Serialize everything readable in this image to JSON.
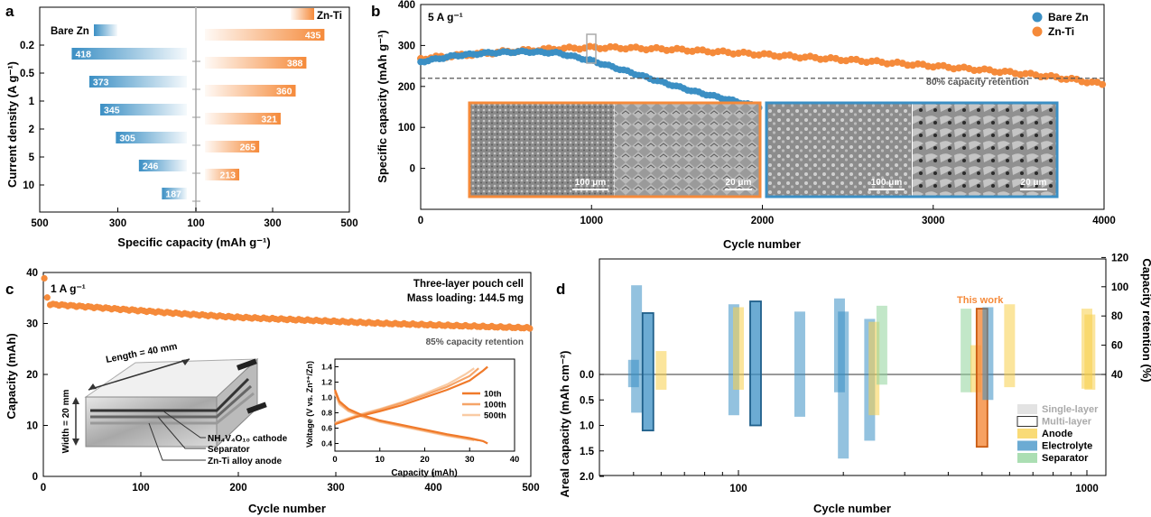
{
  "colors": {
    "blue": "#3b8fc4",
    "orange": "#f58a3a",
    "yellow": "#f7cf4a",
    "green": "#8fd39a",
    "gray": "#666666"
  },
  "panel_labels": [
    "a",
    "b",
    "c",
    "d"
  ],
  "chart_data": [
    {
      "panel": "a",
      "type": "bar",
      "xlabel": "Specific capacity (mAh g⁻¹)",
      "ylabel": "Current density (A g⁻¹)",
      "categories": [
        "0.2",
        "0.5",
        "1",
        "2",
        "5",
        "10"
      ],
      "x_ticks_left": [
        "500",
        "300",
        "100"
      ],
      "x_ticks_right": [
        "300",
        "500"
      ],
      "series": [
        {
          "name": "Bare Zn",
          "values": [
            418,
            373,
            345,
            305,
            246,
            187
          ],
          "labels": [
            "418",
            "373",
            "345",
            "305",
            "246",
            "187"
          ]
        },
        {
          "name": "Zn-Ti",
          "values": [
            435,
            388,
            360,
            321,
            265,
            213
          ],
          "labels": [
            "435",
            "388",
            "360",
            "321",
            "265",
            "213"
          ]
        }
      ]
    },
    {
      "panel": "b",
      "type": "scatter",
      "annotation": "5 A g⁻¹",
      "xlabel": "Cycle number",
      "ylabel": "Specific capacity (mAh g⁻¹)",
      "xlim": [
        0,
        4000
      ],
      "ylim": [
        -100,
        400
      ],
      "x_ticks": [
        "0",
        "1000",
        "2000",
        "3000",
        "4000"
      ],
      "y_ticks": [
        "400",
        "300",
        "200",
        "100",
        "0"
      ],
      "retention_line": 220,
      "retention_label": "80%  capacity retention",
      "scale_labels": [
        "100 μm",
        "20 μm",
        "100 μm",
        "20 μm"
      ],
      "series": [
        {
          "name": "Bare Zn",
          "x": [
            0,
            200,
            400,
            600,
            800,
            1000,
            1200,
            1400,
            1600,
            1800,
            1980
          ],
          "y": [
            260,
            275,
            282,
            285,
            282,
            263,
            238,
            212,
            188,
            168,
            150
          ]
        },
        {
          "name": "Zn-Ti",
          "x": [
            0,
            200,
            500,
            800,
            1000,
            1200,
            1500,
            1800,
            2000,
            2300,
            2600,
            3000,
            3300,
            3600,
            3800,
            4000
          ],
          "y": [
            268,
            275,
            285,
            292,
            295,
            294,
            290,
            283,
            278,
            270,
            262,
            250,
            240,
            228,
            218,
            205
          ]
        }
      ]
    },
    {
      "panel": "c",
      "type": "scatter",
      "annotation": "1 A g⁻¹",
      "title_lines": [
        "Three-layer pouch cell",
        "Mass loading: 144.5 mg"
      ],
      "xlabel": "Cycle number",
      "ylabel": "Capacity (mAh)",
      "xlim": [
        0,
        500
      ],
      "ylim": [
        0,
        40
      ],
      "x_ticks": [
        "0",
        "100",
        "200",
        "300",
        "400",
        "500"
      ],
      "y_ticks": [
        "0",
        "10",
        "20",
        "30",
        "40"
      ],
      "retention_label": "85% capacity retention",
      "series": [
        {
          "x": [
            0,
            5,
            50,
            100,
            150,
            200,
            250,
            300,
            350,
            400,
            450,
            500
          ],
          "y": [
            40,
            33.8,
            33.2,
            32.5,
            31.8,
            31.2,
            30.8,
            30.4,
            30.0,
            29.7,
            29.4,
            29.1
          ]
        }
      ],
      "schematic_labels": {
        "length": "Length = 40 mm",
        "width": "Width = 20 mm",
        "cathode": "NH₄V₄O₁₀ cathode",
        "separator": "Separator",
        "anode": "Zn-Ti alloy anode"
      },
      "inset": {
        "type": "line",
        "xlabel": "Capacity (mAh)",
        "ylabel": "Voltage (V vs. Zn²⁺/Zn)",
        "xlim": [
          0,
          40
        ],
        "ylim": [
          0.3,
          1.5
        ],
        "x_ticks": [
          "0",
          "10",
          "20",
          "30",
          "40"
        ],
        "y_ticks": [
          "0.4",
          "0.6",
          "0.8",
          "1.0",
          "1.2",
          "1.4"
        ],
        "series": [
          {
            "name": "10th",
            "charge": {
              "x": [
                0,
                5,
                10,
                15,
                20,
                25,
                30,
                33,
                34
              ],
              "y": [
                0.65,
                0.75,
                0.82,
                0.9,
                1.0,
                1.1,
                1.22,
                1.35,
                1.4
              ]
            },
            "discharge": {
              "x": [
                0,
                1,
                3,
                6,
                10,
                15,
                20,
                25,
                30,
                33,
                34
              ],
              "y": [
                1.1,
                0.95,
                0.85,
                0.77,
                0.7,
                0.64,
                0.58,
                0.52,
                0.47,
                0.43,
                0.4
              ]
            }
          },
          {
            "name": "100th",
            "charge": {
              "x": [
                0,
                5,
                10,
                15,
                20,
                25,
                30,
                32
              ],
              "y": [
                0.66,
                0.76,
                0.84,
                0.93,
                1.03,
                1.14,
                1.28,
                1.38
              ]
            },
            "discharge": {
              "x": [
                0,
                1,
                3,
                6,
                10,
                15,
                20,
                25,
                30,
                32
              ],
              "y": [
                1.08,
                0.93,
                0.83,
                0.76,
                0.69,
                0.63,
                0.57,
                0.51,
                0.46,
                0.44
              ]
            }
          },
          {
            "name": "500th",
            "charge": {
              "x": [
                0,
                5,
                10,
                15,
                20,
                25,
                29,
                31
              ],
              "y": [
                0.67,
                0.77,
                0.85,
                0.94,
                1.05,
                1.17,
                1.3,
                1.38
              ]
            },
            "discharge": {
              "x": [
                0,
                1,
                3,
                6,
                10,
                15,
                20,
                25,
                29,
                31
              ],
              "y": [
                1.05,
                0.91,
                0.82,
                0.75,
                0.68,
                0.62,
                0.56,
                0.5,
                0.46,
                0.44
              ]
            }
          }
        ]
      }
    },
    {
      "panel": "d",
      "type": "bar",
      "scale": "log",
      "xlabel": "Cycle number",
      "ylabel": "Areal capacity (mAh cm⁻²)",
      "ylabel_right": "Capacity retention (%)",
      "x_ticks": [
        "100",
        "1000"
      ],
      "y_ticks_left": [
        "0.0",
        "0.5",
        "1.0",
        "1.5",
        "2.0"
      ],
      "y_ticks_right": [
        "40",
        "60",
        "80",
        "100",
        "120"
      ],
      "annotation": "This work",
      "legend": [
        "Single-layer",
        "Multi-layer",
        "Anode",
        "Electrolyte",
        "Separator"
      ],
      "entries": [
        {
          "cycles": 50,
          "kind": "Electrolyte",
          "areal": 0.25,
          "retention": 50,
          "multi": false
        },
        {
          "cycles": 51,
          "kind": "Electrolyte",
          "areal": 0.75,
          "retention": 101,
          "multi": false
        },
        {
          "cycles": 55,
          "kind": "Electrolyte",
          "areal": 1.1,
          "retention": 82,
          "multi": true
        },
        {
          "cycles": 60,
          "kind": "Anode",
          "areal": 0.3,
          "retention": 56,
          "multi": false
        },
        {
          "cycles": 97,
          "kind": "Electrolyte",
          "areal": 0.8,
          "retention": 88,
          "multi": false
        },
        {
          "cycles": 100,
          "kind": "Anode",
          "areal": 0.3,
          "retention": 86,
          "multi": false
        },
        {
          "cycles": 112,
          "kind": "Electrolyte",
          "areal": 1.0,
          "retention": 90,
          "multi": true
        },
        {
          "cycles": 150,
          "kind": "Electrolyte",
          "areal": 0.83,
          "retention": 83,
          "multi": false
        },
        {
          "cycles": 195,
          "kind": "Electrolyte",
          "areal": 0.35,
          "retention": 92,
          "multi": false
        },
        {
          "cycles": 200,
          "kind": "Electrolyte",
          "areal": 1.65,
          "retention": 83,
          "multi": false
        },
        {
          "cycles": 238,
          "kind": "Electrolyte",
          "areal": 1.3,
          "retention": 78,
          "multi": false
        },
        {
          "cycles": 245,
          "kind": "Anode",
          "areal": 0.8,
          "retention": 76,
          "multi": false
        },
        {
          "cycles": 258,
          "kind": "Separator",
          "areal": 0.2,
          "retention": 87,
          "multi": false
        },
        {
          "cycles": 450,
          "kind": "Separator",
          "areal": 0.35,
          "retention": 85,
          "multi": false
        },
        {
          "cycles": 480,
          "kind": "Anode",
          "areal": 0.35,
          "retention": 60,
          "multi": false
        },
        {
          "cycles": 500,
          "kind": "Anode",
          "areal": 1.42,
          "retention": 85,
          "multi": true,
          "this_work": true
        },
        {
          "cycles": 520,
          "kind": "Electrolyte",
          "areal": 0.5,
          "retention": 86,
          "multi": false
        },
        {
          "cycles": 600,
          "kind": "Anode",
          "areal": 0.25,
          "retention": 88,
          "multi": false
        },
        {
          "cycles": 1000,
          "kind": "Anode",
          "areal": 0.28,
          "retention": 85,
          "multi": false
        },
        {
          "cycles": 1020,
          "kind": "Anode",
          "areal": 0.3,
          "retention": 81,
          "multi": false
        }
      ]
    }
  ]
}
